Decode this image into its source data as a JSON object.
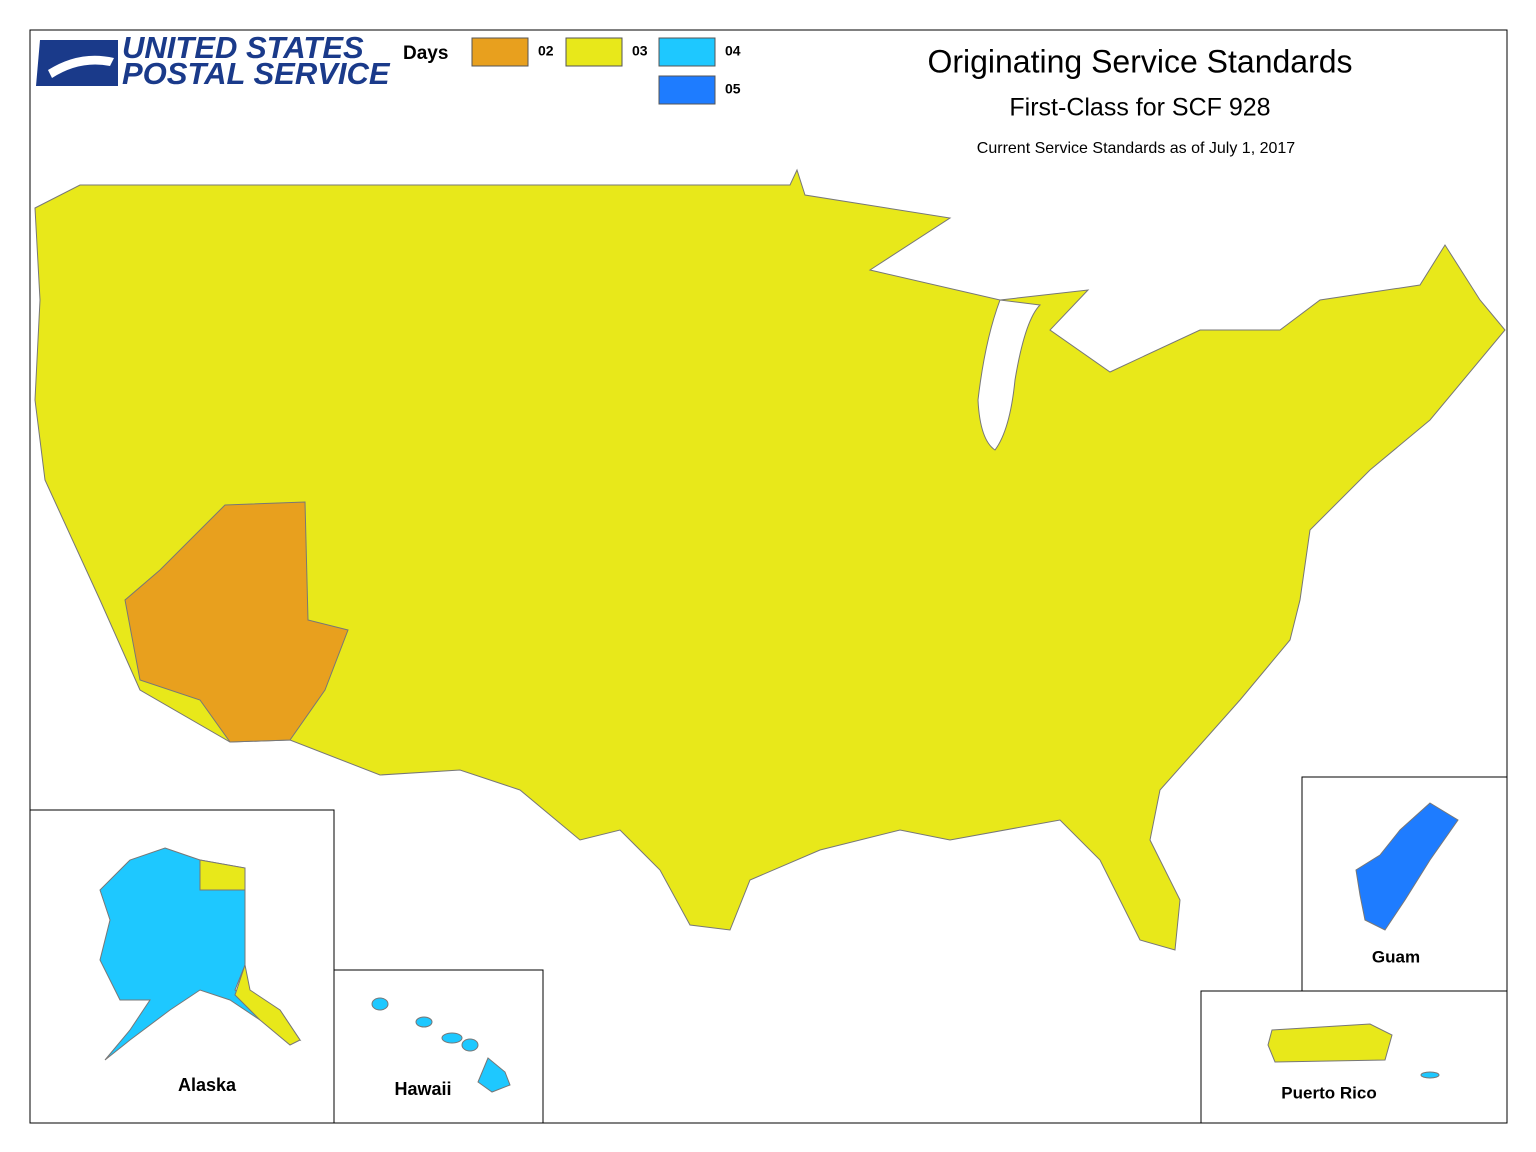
{
  "logo": {
    "line1": "UNITED STATES",
    "line2": "POSTAL SERVICE"
  },
  "legend": {
    "title": "Days",
    "items": [
      {
        "label": "02",
        "color": "#e8a01e"
      },
      {
        "label": "03",
        "color": "#e8e81a"
      },
      {
        "label": "04",
        "color": "#1ec8ff"
      },
      {
        "label": "05",
        "color": "#1e7cff"
      }
    ]
  },
  "header": {
    "title": "Originating Service Standards",
    "subtitle": "First-Class for SCF 928",
    "note": "Current Service Standards as of July 1, 2017"
  },
  "insets": {
    "alaska": "Alaska",
    "hawaii": "Hawaii",
    "guam": "Guam",
    "puerto_rico": "Puerto Rico"
  }
}
